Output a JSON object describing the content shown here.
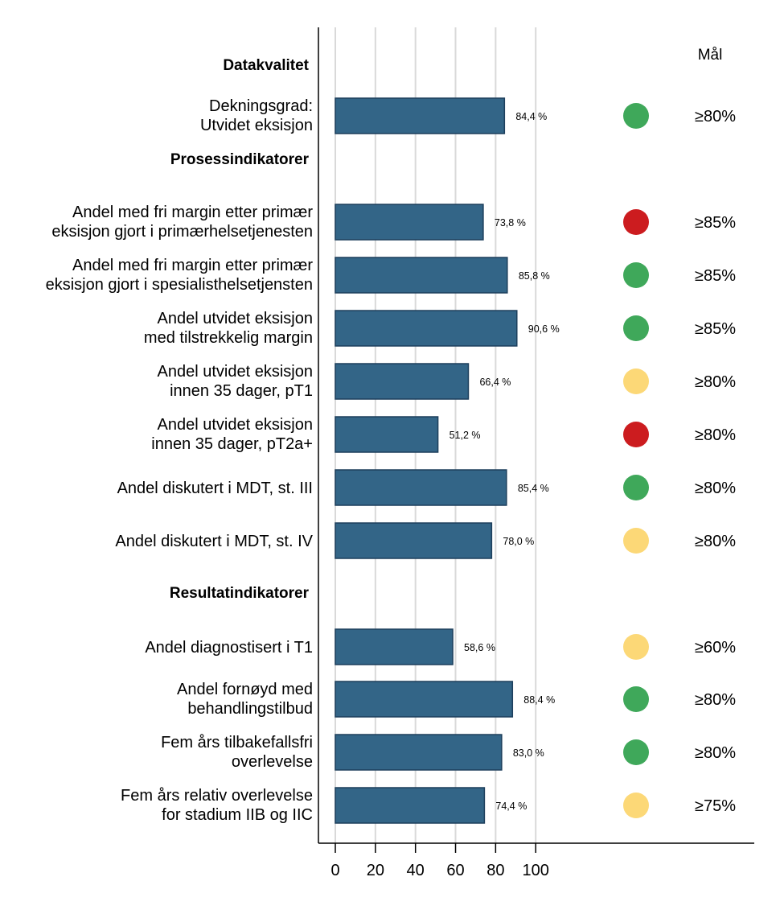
{
  "chart_data": {
    "type": "bar",
    "orientation": "horizontal",
    "xlim": [
      0,
      100
    ],
    "x_ticks": [
      "0",
      "20",
      "40",
      "60",
      "80",
      "100"
    ],
    "grid": true,
    "goal_header": "Mål",
    "sections": [
      {
        "title": "Datakvalitet",
        "items": [
          {
            "label": [
              "Dekningsgrad:",
              "Utvidet eksisjon"
            ],
            "value": 84.4,
            "value_label": "84,4 %",
            "status": "green",
            "goal": "≥80%"
          }
        ]
      },
      {
        "title": "Prosessindikatorer",
        "items": [
          {
            "label": [
              "Andel med fri margin etter primær",
              "eksisjon gjort i primærhelsetjenesten"
            ],
            "value": 73.8,
            "value_label": "73,8 %",
            "status": "red",
            "goal": "≥85%"
          },
          {
            "label": [
              "Andel med fri margin etter primær",
              "eksisjon gjort i spesialisthelsetjensten"
            ],
            "value": 85.8,
            "value_label": "85,8 %",
            "status": "green",
            "goal": "≥85%"
          },
          {
            "label": [
              "Andel utvidet eksisjon",
              "med tilstrekkelig margin"
            ],
            "value": 90.6,
            "value_label": "90,6 %",
            "status": "green",
            "goal": "≥85%"
          },
          {
            "label": [
              "Andel utvidet eksisjon",
              "innen 35 dager, pT1"
            ],
            "value": 66.4,
            "value_label": "66,4 %",
            "status": "yellow",
            "goal": "≥80%"
          },
          {
            "label": [
              "Andel utvidet eksisjon",
              "innen 35 dager, pT2a+"
            ],
            "value": 51.2,
            "value_label": "51,2 %",
            "status": "red",
            "goal": "≥80%"
          },
          {
            "label": [
              "Andel diskutert i MDT, st. III"
            ],
            "value": 85.4,
            "value_label": "85,4 %",
            "status": "green",
            "goal": "≥80%"
          },
          {
            "label": [
              "Andel diskutert i MDT, st. IV"
            ],
            "value": 78.0,
            "value_label": "78,0 %",
            "status": "yellow",
            "goal": "≥80%"
          }
        ]
      },
      {
        "title": "Resultatindikatorer",
        "items": [
          {
            "label": [
              "Andel diagnostisert i T1"
            ],
            "value": 58.6,
            "value_label": "58,6 %",
            "status": "yellow",
            "goal": "≥60%"
          },
          {
            "label": [
              "Andel fornøyd med",
              "behandlingstilbud"
            ],
            "value": 88.4,
            "value_label": "88,4 %",
            "status": "green",
            "goal": "≥80%"
          },
          {
            "label": [
              "Fem års tilbakefallsfri",
              "overlevelse"
            ],
            "value": 83.0,
            "value_label": "83,0 %",
            "status": "green",
            "goal": "≥80%"
          },
          {
            "label": [
              "Fem års relativ overlevelse",
              "for stadium IIB og IIC"
            ],
            "value": 74.4,
            "value_label": "74,4 %",
            "status": "yellow",
            "goal": "≥75%"
          }
        ]
      }
    ],
    "colors": {
      "bar": "#336587",
      "bar_edge": "#1d3f5c",
      "green": "#3fa85a",
      "red": "#cc1c1f",
      "yellow": "#fcd877",
      "grid": "#d9d9d9"
    }
  }
}
